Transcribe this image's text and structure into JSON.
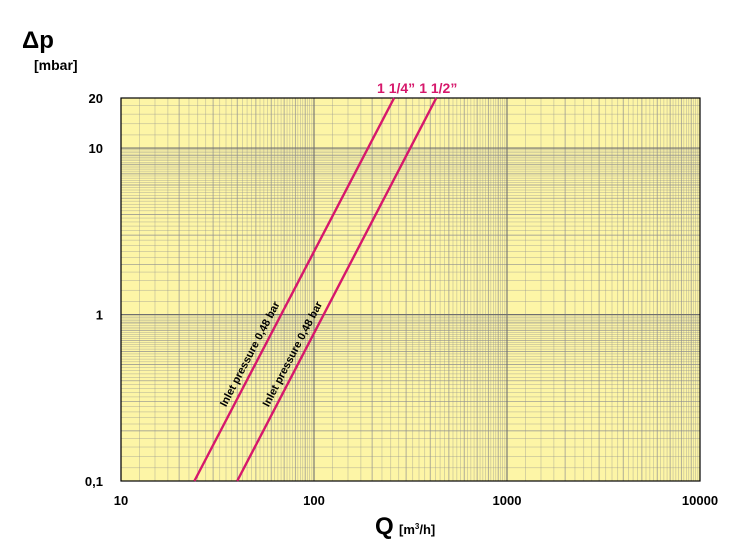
{
  "chart_data": {
    "type": "line",
    "title": "",
    "ylabel_main": "Δp",
    "ylabel_unit": "[mbar]",
    "xlabel_main": "Q",
    "xlabel_unit_pre": "[m",
    "xlabel_unit_sup": "3",
    "xlabel_unit_post": "/h]",
    "x_scale": "log",
    "y_scale": "log",
    "xlim": [
      10,
      10000
    ],
    "ylim": [
      0.1,
      20
    ],
    "x_ticks": [
      {
        "value": 10,
        "label": "10"
      },
      {
        "value": 100,
        "label": "100"
      },
      {
        "value": 1000,
        "label": "1000"
      },
      {
        "value": 10000,
        "label": "10000"
      }
    ],
    "y_ticks": [
      {
        "value": 0.1,
        "label": "0,1"
      },
      {
        "value": 1,
        "label": "1"
      },
      {
        "value": 10,
        "label": "10"
      },
      {
        "value": 20,
        "label": "20"
      }
    ],
    "grid": true,
    "background_color": "#fdf5a6",
    "grid_color": "#8f8f8f",
    "series_color": "#d6186b",
    "series": [
      {
        "name": "1 1/4”",
        "annotation": "Inlet pressure 0,48 bar",
        "x": [
          24,
          260
        ],
        "y": [
          0.1,
          20
        ]
      },
      {
        "name": "1 1/2”",
        "annotation": "Inlet pressure 0,48 bar",
        "x": [
          40,
          430
        ],
        "y": [
          0.1,
          20
        ]
      }
    ]
  }
}
